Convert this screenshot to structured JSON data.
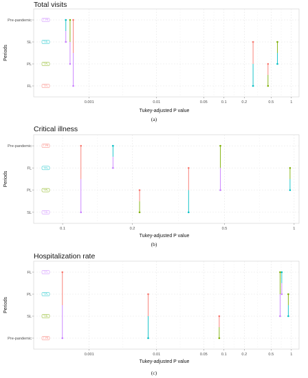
{
  "chart_data": [
    {
      "type": "scatter",
      "subfigure": "(a)",
      "title": "Total visits",
      "xlabel": "Tukey-adjusted P value",
      "ylabel": "Periods",
      "x_scale": "log",
      "xlim": [
        0.00015,
        1.3
      ],
      "x_ticks": [
        0.001,
        0.01,
        0.05,
        0.1,
        0.2,
        0.5,
        1
      ],
      "x_tick_labels": [
        "0.001",
        "0.01",
        "0.05",
        "0.1",
        "0.2",
        "0.5",
        "1"
      ],
      "categories": [
        "Pre-pandemic",
        "SL",
        "PL",
        "FL"
      ],
      "legend": [
        {
          "label": "T-PR",
          "color": "#c77cff"
        },
        {
          "label": "T-SL",
          "color": "#00bfc4"
        },
        {
          "label": "T-PL",
          "color": "#7cae00"
        },
        {
          "label": "T-FL",
          "color": "#f8766d"
        }
      ],
      "segments": [
        {
          "x": 0.00045,
          "from": "Pre-pandemic",
          "to": "SL",
          "from_color": "#00bfc4",
          "to_color": "#c77cff"
        },
        {
          "x": 0.00052,
          "from": "Pre-pandemic",
          "to": "PL",
          "from_color": "#7cae00",
          "to_color": "#c77cff"
        },
        {
          "x": 0.00058,
          "from": "Pre-pandemic",
          "to": "FL",
          "from_color": "#f8766d",
          "to_color": "#c77cff"
        },
        {
          "x": 0.27,
          "from": "SL",
          "to": "FL",
          "from_color": "#f8766d",
          "to_color": "#00bfc4"
        },
        {
          "x": 0.45,
          "from": "PL",
          "to": "FL",
          "from_color": "#f8766d",
          "to_color": "#7cae00"
        },
        {
          "x": 0.62,
          "from": "SL",
          "to": "PL",
          "from_color": "#7cae00",
          "to_color": "#00bfc4"
        }
      ]
    },
    {
      "type": "scatter",
      "subfigure": "(b)",
      "title": "Critical illness",
      "xlabel": "Tukey-adjusted P value",
      "ylabel": "Periods",
      "x_scale": "log",
      "xlim": [
        0.075,
        1.05
      ],
      "x_ticks": [
        0.1,
        0.2,
        0.5,
        1
      ],
      "x_tick_labels": [
        "0.1",
        "0.2",
        "0.5",
        "1"
      ],
      "categories": [
        "Pre-pandemic",
        "FL",
        "PL",
        "SL"
      ],
      "legend": [
        {
          "label": "T-PR",
          "color": "#f8766d"
        },
        {
          "label": "T-FL",
          "color": "#00bfc4"
        },
        {
          "label": "T-PL",
          "color": "#7cae00"
        },
        {
          "label": "T-SL",
          "color": "#c77cff"
        }
      ],
      "segments": [
        {
          "x": 0.12,
          "from": "Pre-pandemic",
          "to": "SL",
          "from_color": "#f8766d",
          "to_color": "#c77cff"
        },
        {
          "x": 0.165,
          "from": "Pre-pandemic",
          "to": "FL",
          "from_color": "#00bfc4",
          "to_color": "#c77cff"
        },
        {
          "x": 0.215,
          "from": "PL",
          "to": "SL",
          "from_color": "#f8766d",
          "to_color": "#7cae00"
        },
        {
          "x": 0.35,
          "from": "FL",
          "to": "SL",
          "from_color": "#f8766d",
          "to_color": "#00bfc4"
        },
        {
          "x": 0.48,
          "from": "Pre-pandemic",
          "to": "PL",
          "from_color": "#7cae00",
          "to_color": "#c77cff"
        },
        {
          "x": 0.96,
          "from": "FL",
          "to": "PL",
          "from_color": "#7cae00",
          "to_color": "#00bfc4"
        }
      ]
    },
    {
      "type": "scatter",
      "subfigure": "(c)",
      "title": "Hospitalization rate",
      "xlabel": "Tukey-adjusted P value",
      "ylabel": "Periods",
      "x_scale": "log",
      "xlim": [
        0.00015,
        1.3
      ],
      "x_ticks": [
        0.001,
        0.01,
        0.05,
        0.1,
        0.2,
        0.5,
        1
      ],
      "x_tick_labels": [
        "0.001",
        "0.01",
        "0.05",
        "0.1",
        "0.2",
        "0.5",
        "1"
      ],
      "categories": [
        "FL",
        "PL",
        "SL",
        "Pre-pandemic"
      ],
      "legend": [
        {
          "label": "T-FL",
          "color": "#c77cff"
        },
        {
          "label": "T-PL",
          "color": "#00bfc4"
        },
        {
          "label": "T-SL",
          "color": "#7cae00"
        },
        {
          "label": "T-PR",
          "color": "#f8766d"
        }
      ],
      "segments": [
        {
          "x": 0.0004,
          "from": "FL",
          "to": "Pre-pandemic",
          "from_color": "#f8766d",
          "to_color": "#c77cff"
        },
        {
          "x": 0.0075,
          "from": "PL",
          "to": "Pre-pandemic",
          "from_color": "#f8766d",
          "to_color": "#00bfc4"
        },
        {
          "x": 0.085,
          "from": "SL",
          "to": "Pre-pandemic",
          "from_color": "#f8766d",
          "to_color": "#7cae00"
        },
        {
          "x": 0.68,
          "from": "FL",
          "to": "SL",
          "from_color": "#7cae00",
          "to_color": "#c77cff"
        },
        {
          "x": 0.72,
          "from": "FL",
          "to": "PL",
          "from_color": "#00bfc4",
          "to_color": "#c77cff"
        },
        {
          "x": 0.9,
          "from": "PL",
          "to": "SL",
          "from_color": "#7cae00",
          "to_color": "#00bfc4"
        }
      ]
    }
  ]
}
